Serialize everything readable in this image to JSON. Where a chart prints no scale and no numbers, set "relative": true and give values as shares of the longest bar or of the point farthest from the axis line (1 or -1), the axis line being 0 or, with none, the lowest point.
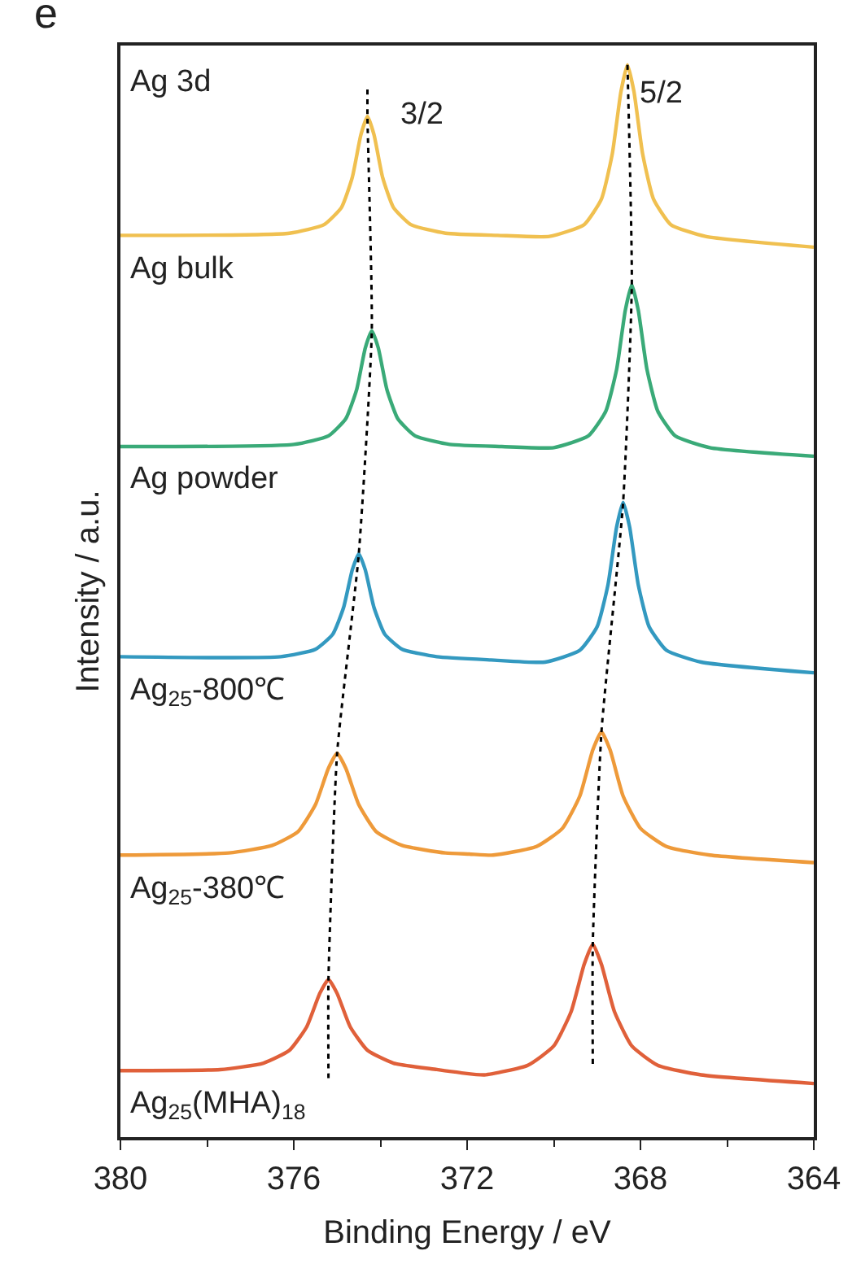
{
  "chart_data": {
    "type": "line",
    "relative": true,
    "xlabel": "Binding Energy / eV",
    "ylabel": "Intensity / a.u.",
    "xlim": [
      380,
      364
    ],
    "xticks": [
      380,
      376,
      372,
      368,
      364
    ],
    "legend": false,
    "marker": "none",
    "line_style": "solid",
    "series": [
      {
        "name": "Ag bulk",
        "color": "#f0c050",
        "x": [
          380,
          376.1,
          375.3,
          374.9,
          374.65,
          374.45,
          374.3,
          374.15,
          373.95,
          373.7,
          373.3,
          372.5,
          371.3,
          370.1,
          369.3,
          368.9,
          368.65,
          368.45,
          368.3,
          368.15,
          367.95,
          367.7,
          367.3,
          366.5,
          364
        ],
        "values": [
          0.841,
          0.843,
          0.851,
          0.867,
          0.895,
          0.935,
          0.952,
          0.935,
          0.895,
          0.867,
          0.851,
          0.843,
          0.841,
          0.84,
          0.851,
          0.875,
          0.917,
          0.975,
          1.0,
          0.975,
          0.917,
          0.875,
          0.851,
          0.84,
          0.83
        ]
      },
      {
        "name": "Ag powder",
        "color": "#3aaa78",
        "x": [
          380,
          376.0,
          375.2,
          374.8,
          374.55,
          374.35,
          374.2,
          374.05,
          373.85,
          373.6,
          373.2,
          372.4,
          371.2,
          370.0,
          369.2,
          368.8,
          368.55,
          368.35,
          368.2,
          368.05,
          367.85,
          367.6,
          367.2,
          366.4,
          364
        ],
        "values": [
          0.644,
          0.646,
          0.654,
          0.67,
          0.697,
          0.736,
          0.752,
          0.736,
          0.697,
          0.67,
          0.654,
          0.646,
          0.644,
          0.643,
          0.654,
          0.677,
          0.716,
          0.771,
          0.795,
          0.771,
          0.716,
          0.677,
          0.654,
          0.643,
          0.635
        ]
      },
      {
        "name": "Ag$_{25}$-800℃",
        "color": "#3399c0",
        "x": [
          380,
          376.3,
          375.5,
          375.1,
          374.85,
          374.65,
          374.5,
          374.35,
          374.15,
          373.9,
          373.5,
          372.7,
          371.45,
          370.2,
          369.4,
          369.0,
          368.75,
          368.55,
          368.4,
          368.25,
          368.05,
          367.8,
          367.4,
          366.6,
          364
        ],
        "values": [
          0.448,
          0.448,
          0.455,
          0.469,
          0.494,
          0.529,
          0.544,
          0.529,
          0.494,
          0.469,
          0.455,
          0.448,
          0.445,
          0.443,
          0.454,
          0.476,
          0.515,
          0.569,
          0.592,
          0.569,
          0.515,
          0.476,
          0.454,
          0.443,
          0.433
        ]
      },
      {
        "name": "Ag$_{25}$-380℃",
        "color": "#ee9a3a",
        "x": [
          380,
          377.5,
          376.5,
          375.9,
          375.5,
          375.2,
          375.0,
          374.8,
          374.5,
          374.1,
          373.5,
          372.5,
          371.95,
          371.4,
          370.4,
          369.8,
          369.4,
          369.1,
          368.9,
          368.7,
          368.4,
          368.0,
          367.4,
          366.4,
          364
        ],
        "values": [
          0.263,
          0.265,
          0.272,
          0.285,
          0.31,
          0.344,
          0.358,
          0.344,
          0.31,
          0.285,
          0.272,
          0.265,
          0.264,
          0.263,
          0.271,
          0.288,
          0.318,
          0.361,
          0.378,
          0.361,
          0.318,
          0.288,
          0.271,
          0.263,
          0.256
        ]
      },
      {
        "name": "Ag$_{25}$(MHA)$_{18}$",
        "color": "#e0603a",
        "x": [
          380,
          377.7,
          376.7,
          376.1,
          375.7,
          375.4,
          375.2,
          375.0,
          374.7,
          374.3,
          373.7,
          372.7,
          372.15,
          371.6,
          370.6,
          370.0,
          369.6,
          369.3,
          369.1,
          368.9,
          368.6,
          368.2,
          367.6,
          366.6,
          364
        ],
        "values": [
          0.062,
          0.063,
          0.069,
          0.081,
          0.103,
          0.134,
          0.147,
          0.134,
          0.103,
          0.081,
          0.069,
          0.063,
          0.06,
          0.058,
          0.067,
          0.085,
          0.117,
          0.161,
          0.18,
          0.161,
          0.117,
          0.085,
          0.067,
          0.058,
          0.05
        ]
      },
      {
        "color": "#000000",
        "line_style": "dashed",
        "x": [
          374.3,
          374.3,
          374.2,
          374.5,
          375.0,
          375.2,
          375.2
        ],
        "values": [
          0.977,
          0.952,
          0.752,
          0.544,
          0.358,
          0.147,
          0.055
        ]
      },
      {
        "color": "#000000",
        "line_style": "dashed",
        "x": [
          368.3,
          368.2,
          368.4,
          368.9,
          369.1,
          369.1
        ],
        "values": [
          1.0,
          0.795,
          0.592,
          0.378,
          0.18,
          0.068
        ]
      }
    ],
    "annotations": [
      "e",
      "Ag 3d",
      "3/2",
      "5/2"
    ]
  }
}
